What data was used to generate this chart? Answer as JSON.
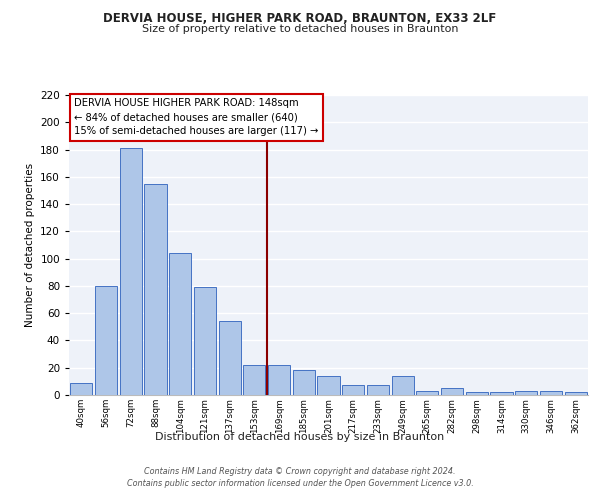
{
  "title1": "DERVIA HOUSE, HIGHER PARK ROAD, BRAUNTON, EX33 2LF",
  "title2": "Size of property relative to detached houses in Braunton",
  "xlabel": "Distribution of detached houses by size in Braunton",
  "ylabel": "Number of detached properties",
  "categories": [
    "40sqm",
    "56sqm",
    "72sqm",
    "88sqm",
    "104sqm",
    "121sqm",
    "137sqm",
    "153sqm",
    "169sqm",
    "185sqm",
    "201sqm",
    "217sqm",
    "233sqm",
    "249sqm",
    "265sqm",
    "282sqm",
    "298sqm",
    "314sqm",
    "330sqm",
    "346sqm",
    "362sqm"
  ],
  "values": [
    9,
    80,
    181,
    155,
    104,
    79,
    54,
    22,
    22,
    18,
    14,
    7,
    7,
    14,
    3,
    5,
    2,
    2,
    3,
    3,
    2
  ],
  "bar_color": "#aec6e8",
  "bar_edge_color": "#4472c4",
  "vline_x": 7.5,
  "vline_color": "#8b0000",
  "annotation_text": "DERVIA HOUSE HIGHER PARK ROAD: 148sqm\n← 84% of detached houses are smaller (640)\n15% of semi-detached houses are larger (117) →",
  "annotation_box_color": "#ffffff",
  "annotation_box_edge_color": "#cc0000",
  "ylim": [
    0,
    220
  ],
  "yticks": [
    0,
    20,
    40,
    60,
    80,
    100,
    120,
    140,
    160,
    180,
    200,
    220
  ],
  "footer": "Contains HM Land Registry data © Crown copyright and database right 2024.\nContains public sector information licensed under the Open Government Licence v3.0.",
  "bg_color": "#eef2f9",
  "grid_color": "#ffffff",
  "fig_bg": "#ffffff"
}
